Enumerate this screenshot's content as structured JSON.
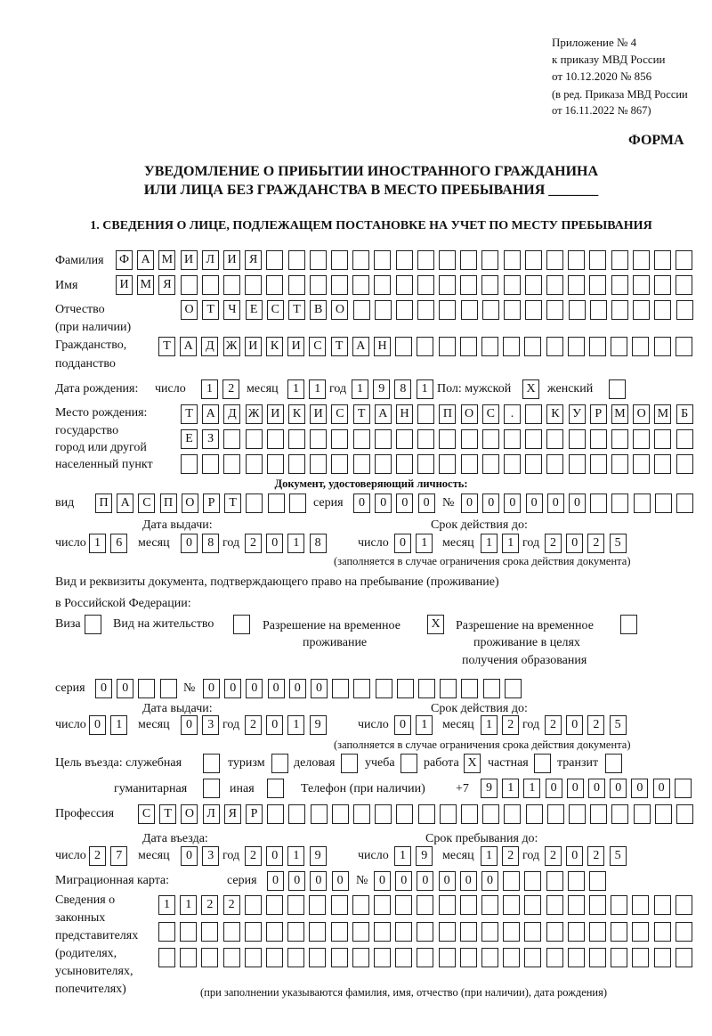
{
  "header": {
    "appendix": "Приложение № 4",
    "order": "к приказу МВД России",
    "order_date": "от 10.12.2020 № 856",
    "edition1": "(в ред. Приказа МВД России",
    "edition2": "от 16.11.2022 № 867)",
    "form_label": "ФОРМА",
    "title1": "УВЕДОМЛЕНИЕ О ПРИБЫТИИ ИНОСТРАННОГО ГРАЖДАНИНА",
    "title2": "ИЛИ ЛИЦА БЕЗ ГРАЖДАНСТВА В МЕСТО ПРЕБЫВАНИЯ _______",
    "section1": "1. СВЕДЕНИЯ О ЛИЦЕ, ПОДЛЕЖАЩЕМ ПОСТАНОВКЕ НА УЧЕТ ПО МЕСТУ ПРЕБЫВАНИЯ"
  },
  "labels": {
    "surname": "Фамилия",
    "name": "Имя",
    "patronymic1": "Отчество",
    "patronymic2": "(при наличии)",
    "citizenship1": "Гражданство,",
    "citizenship2": "подданство",
    "birth_date": "Дата рождения:",
    "day": "число",
    "month": "месяц",
    "year": "год",
    "sex": "Пол: мужской",
    "female": "женский",
    "birthplace1": "Место рождения:",
    "birthplace2": "государство",
    "birthplace3": "город или другой",
    "birthplace4": "населенный пункт",
    "id_doc": "Документ, удостоверяющий личность:",
    "kind": "вид",
    "series": "серия",
    "number": "№",
    "issue_date": "Дата выдачи:",
    "valid_until": "Срок действия до:",
    "validity_note": "(заполняется в случае ограничения срока действия документа)",
    "right_doc1": "Вид и реквизиты документа, подтверждающего право на пребывание (проживание)",
    "right_doc2": "в Российской Федерации:",
    "visa": "Виза",
    "residence": "Вид на жительство",
    "trp1": "Разрешение на временное",
    "trp2": "проживание",
    "trp_edu1": "Разрешение на временное",
    "trp_edu2": "проживание в целях",
    "trp_edu3": "получения образования",
    "purpose": "Цель въезда: служебная",
    "tourism": "туризм",
    "business": "деловая",
    "study": "учеба",
    "work": "работа",
    "private": "частная",
    "transit": "транзит",
    "humanitarian": "гуманитарная",
    "other": "иная",
    "phone": "Телефон (при наличии)",
    "phone_prefix": "+7",
    "profession": "Профессия",
    "entry_date": "Дата въезда:",
    "stay_until": "Срок пребывания до:",
    "migration_card": "Миграционная карта:",
    "reps1": "Сведения о",
    "reps2": "законных",
    "reps3": "представителях",
    "reps4": "(родителях,",
    "reps5": "усыновителях,",
    "reps6": "попечителях)",
    "reps_note": "(при заполнении указываются фамилия, имя, отчество (при наличии), дата рождения)"
  },
  "form": {
    "surname": "ФАМИЛИЯ",
    "name": "ИМЯ",
    "patronymic": "ОТЧЕСТВО",
    "citizenship": "ТАДЖИКИСТАН",
    "birth_day": "12",
    "birth_month": "11",
    "birth_year": "1981",
    "sex_male": "X",
    "sex_female": "",
    "birthplace_row1": "ТАДЖИКИСТАН ПОС. КУРМОМБ",
    "birthplace_row2": "ЕЗ",
    "birthplace_row3": "",
    "id_kind": "ПАСПОРТ",
    "id_series": "0000",
    "id_number": "000000",
    "id_issue_day": "16",
    "id_issue_month": "08",
    "id_issue_year": "2018",
    "id_valid_day": "01",
    "id_valid_month": "11",
    "id_valid_year": "2025",
    "visa": "",
    "residence": "",
    "trp": "X",
    "trp_edu": "",
    "right_series": "00",
    "right_number": "000000",
    "right_issue_day": "01",
    "right_issue_month": "03",
    "right_issue_year": "2019",
    "right_valid_day": "01",
    "right_valid_month": "12",
    "right_valid_year": "2025",
    "purpose_service": "",
    "purpose_tourism": "",
    "purpose_business": "",
    "purpose_study": "",
    "purpose_work": "X",
    "purpose_private": "",
    "purpose_transit": "",
    "purpose_humanitarian": "",
    "purpose_other": "",
    "phone": "911000000",
    "profession": "СТОЛЯР",
    "entry_day": "27",
    "entry_month": "03",
    "entry_year": "2019",
    "stay_day": "19",
    "stay_month": "12",
    "stay_year": "2025",
    "mig_series": "0000",
    "mig_number": "000000",
    "reps_row1": "1122",
    "reps_row2": "",
    "reps_row3": ""
  }
}
